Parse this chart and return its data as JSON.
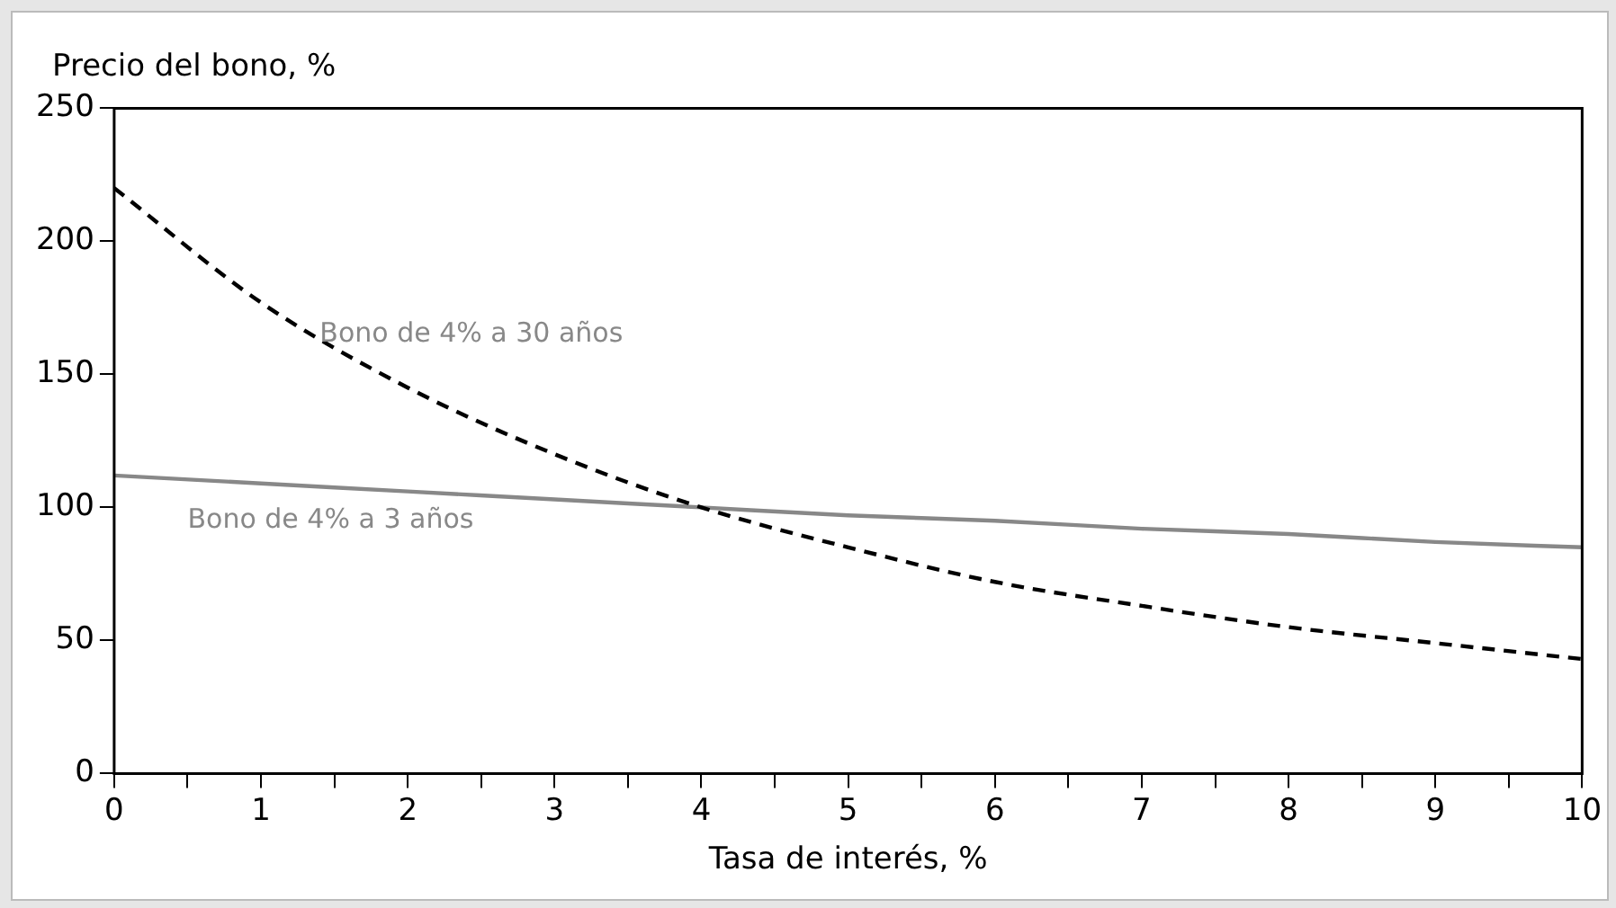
{
  "chart_data": {
    "type": "line",
    "xlabel": "Tasa de interés, %",
    "ylabel": "Precio del bono, %",
    "x": [
      0,
      1,
      2,
      3,
      4,
      5,
      6,
      7,
      8,
      9,
      10
    ],
    "series": [
      {
        "color": "#000000",
        "line_style": "dashed",
        "values": [
          220,
          177,
          145,
          120,
          100,
          85,
          72,
          63,
          55,
          49,
          43
        ]
      },
      {
        "color": "#888888",
        "line_style": "solid",
        "values": [
          112,
          109,
          106,
          103,
          100,
          97,
          95,
          92,
          90,
          87,
          85
        ]
      }
    ],
    "annotations": [
      {
        "text": "Bono de 4% a 30 años",
        "x": 1.4,
        "y": 165
      },
      "Bono de 4% a 3 años"
    ],
    "xlim": [
      0,
      10
    ],
    "ylim": [
      0,
      250
    ],
    "xticks": [
      0,
      {
        "value": 0.5,
        "label": null
      },
      1,
      {
        "value": 1.5,
        "label": null
      },
      2,
      {
        "value": 2.5,
        "label": null
      },
      3,
      {
        "value": 3.5,
        "label": null
      },
      4,
      {
        "value": 4.5,
        "label": null
      },
      5,
      {
        "value": 5.5,
        "label": null
      },
      6,
      {
        "value": 6.5,
        "label": null
      },
      7,
      {
        "value": 7.5,
        "label": null
      },
      8,
      {
        "value": 8.5,
        "label": null
      },
      9,
      {
        "value": 9.5,
        "label": null
      },
      10
    ],
    "yticks": [
      0,
      50,
      100,
      150,
      200,
      250
    ],
    "grid": false,
    "legend": false,
    "marker": "none"
  }
}
